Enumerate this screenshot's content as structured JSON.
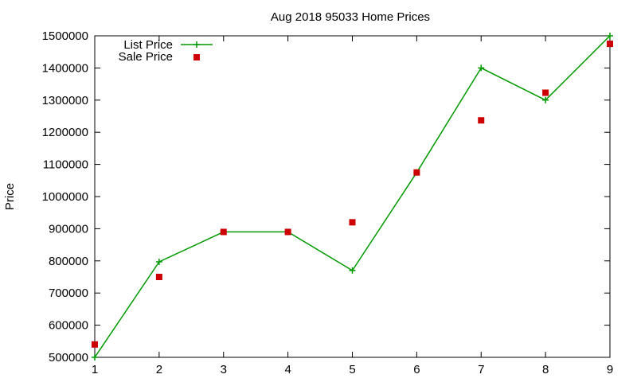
{
  "chart_data": {
    "type": "line",
    "title": "Aug 2018 95033 Home Prices",
    "xlabel": "",
    "ylabel": "Price",
    "x": [
      1,
      2,
      3,
      4,
      5,
      6,
      7,
      8,
      9
    ],
    "xlim": [
      1,
      9
    ],
    "ylim": [
      500000,
      1500000
    ],
    "yticks": [
      500000,
      600000,
      700000,
      800000,
      900000,
      1000000,
      1100000,
      1200000,
      1300000,
      1400000,
      1500000
    ],
    "grid": false,
    "legend_position": "top-left",
    "series": [
      {
        "name": "List Price",
        "style": "line-with-plus-markers",
        "color": "#009900",
        "values": [
          500000,
          797000,
          890000,
          890000,
          770000,
          1075000,
          1400000,
          1300000,
          1500000
        ]
      },
      {
        "name": "Sale Price",
        "style": "square-markers",
        "color": "#cc0000",
        "values": [
          540000,
          750000,
          890000,
          890000,
          920000,
          1075000,
          1237000,
          1323000,
          1475000
        ]
      }
    ]
  }
}
